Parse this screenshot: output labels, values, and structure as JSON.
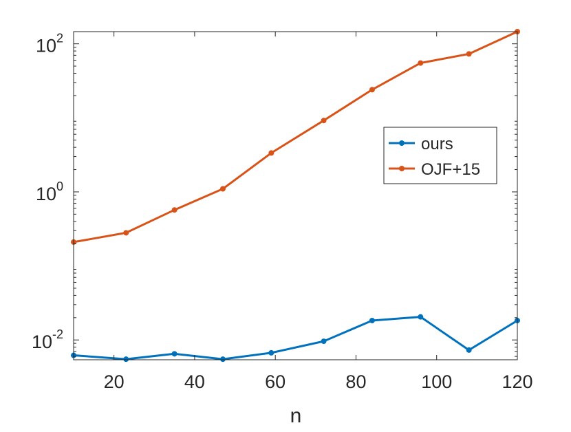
{
  "chart_data": {
    "type": "line",
    "title": "",
    "xlabel": "n",
    "ylabel": "",
    "xlim": [
      10,
      120
    ],
    "ylim": [
      0.0054,
      146
    ],
    "yscale": "log",
    "x_ticks": [
      20,
      40,
      60,
      80,
      100,
      120
    ],
    "x_tick_labels": [
      "20",
      "40",
      "60",
      "80",
      "100",
      "120"
    ],
    "y_ticks": [
      {
        "value": 0.01,
        "base": "10",
        "exp": "-2"
      },
      {
        "value": 1,
        "base": "10",
        "exp": "0"
      },
      {
        "value": 100,
        "base": "10",
        "exp": "2"
      }
    ],
    "grid": false,
    "legend_position": "right",
    "series": [
      {
        "name": "ours",
        "color": "#0072BD",
        "x": [
          10,
          23,
          35,
          47,
          59,
          72,
          84,
          96,
          108,
          120
        ],
        "y": [
          0.0062,
          0.0055,
          0.0065,
          0.0055,
          0.0067,
          0.0096,
          0.0183,
          0.0205,
          0.0073,
          0.0183
        ]
      },
      {
        "name": "OJF+15",
        "color": "#D95319",
        "x": [
          10,
          23,
          35,
          47,
          59,
          72,
          84,
          96,
          108,
          120
        ],
        "y": [
          0.21,
          0.28,
          0.57,
          1.1,
          3.35,
          9.2,
          24.0,
          55.0,
          73.0,
          146.0
        ]
      }
    ]
  }
}
